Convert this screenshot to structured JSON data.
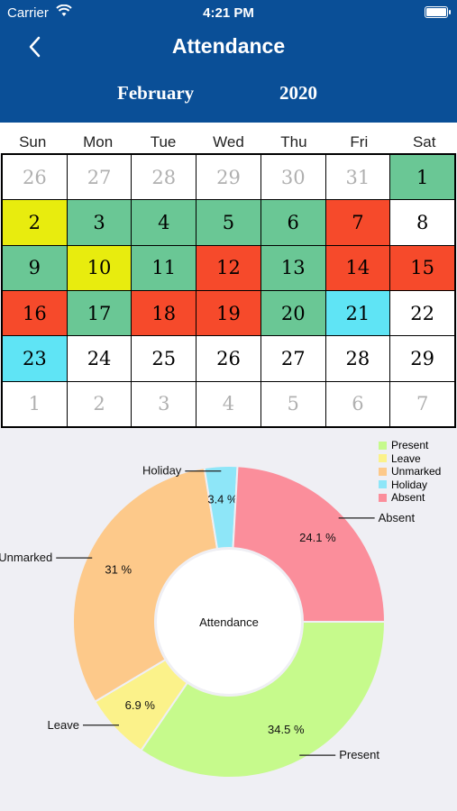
{
  "status": {
    "carrier": "Carrier",
    "time": "4:21 PM"
  },
  "nav": {
    "title": "Attendance",
    "month": "February",
    "year": "2020"
  },
  "weekdays": [
    "Sun",
    "Mon",
    "Tue",
    "Wed",
    "Thu",
    "Fri",
    "Sat"
  ],
  "colors": {
    "present": "#6ac795",
    "leave": "#e8ec0e",
    "absent": "#f64a2b",
    "holiday": "#5fe4f5",
    "none": "#ffffff"
  },
  "calendar": [
    {
      "day": "26",
      "status": "none",
      "muted": true
    },
    {
      "day": "27",
      "status": "none",
      "muted": true
    },
    {
      "day": "28",
      "status": "none",
      "muted": true
    },
    {
      "day": "29",
      "status": "none",
      "muted": true
    },
    {
      "day": "30",
      "status": "none",
      "muted": true
    },
    {
      "day": "31",
      "status": "none",
      "muted": true
    },
    {
      "day": "1",
      "status": "present"
    },
    {
      "day": "2",
      "status": "leave"
    },
    {
      "day": "3",
      "status": "present"
    },
    {
      "day": "4",
      "status": "present"
    },
    {
      "day": "5",
      "status": "present"
    },
    {
      "day": "6",
      "status": "present"
    },
    {
      "day": "7",
      "status": "absent"
    },
    {
      "day": "8",
      "status": "none"
    },
    {
      "day": "9",
      "status": "present"
    },
    {
      "day": "10",
      "status": "leave"
    },
    {
      "day": "11",
      "status": "present"
    },
    {
      "day": "12",
      "status": "absent"
    },
    {
      "day": "13",
      "status": "present"
    },
    {
      "day": "14",
      "status": "absent"
    },
    {
      "day": "15",
      "status": "absent"
    },
    {
      "day": "16",
      "status": "absent"
    },
    {
      "day": "17",
      "status": "present"
    },
    {
      "day": "18",
      "status": "absent"
    },
    {
      "day": "19",
      "status": "absent"
    },
    {
      "day": "20",
      "status": "present"
    },
    {
      "day": "21",
      "status": "holiday"
    },
    {
      "day": "22",
      "status": "none"
    },
    {
      "day": "23",
      "status": "holiday"
    },
    {
      "day": "24",
      "status": "none"
    },
    {
      "day": "25",
      "status": "none"
    },
    {
      "day": "26",
      "status": "none"
    },
    {
      "day": "27",
      "status": "none"
    },
    {
      "day": "28",
      "status": "none"
    },
    {
      "day": "29",
      "status": "none"
    },
    {
      "day": "1",
      "status": "none",
      "muted": true
    },
    {
      "day": "2",
      "status": "none",
      "muted": true
    },
    {
      "day": "3",
      "status": "none",
      "muted": true
    },
    {
      "day": "4",
      "status": "none",
      "muted": true
    },
    {
      "day": "5",
      "status": "none",
      "muted": true
    },
    {
      "day": "6",
      "status": "none",
      "muted": true
    },
    {
      "day": "7",
      "status": "none",
      "muted": true
    }
  ],
  "chart_data": {
    "type": "pie",
    "title": "",
    "center_label": "Attendance",
    "legend_position": "top-right",
    "series": [
      {
        "name": "Present",
        "value": 34.5,
        "label": "34.5 %",
        "color": "#c6fa8c"
      },
      {
        "name": "Leave",
        "value": 6.9,
        "label": "6.9 %",
        "color": "#fbf28a"
      },
      {
        "name": "Unmarked",
        "value": 31,
        "label": "31 %",
        "color": "#fdc98a"
      },
      {
        "name": "Holiday",
        "value": 3.4,
        "label": "3.4 %",
        "color": "#8ee6f8"
      },
      {
        "name": "Absent",
        "value": 24.1,
        "label": "24.1 %",
        "color": "#fb8e9b"
      }
    ]
  }
}
